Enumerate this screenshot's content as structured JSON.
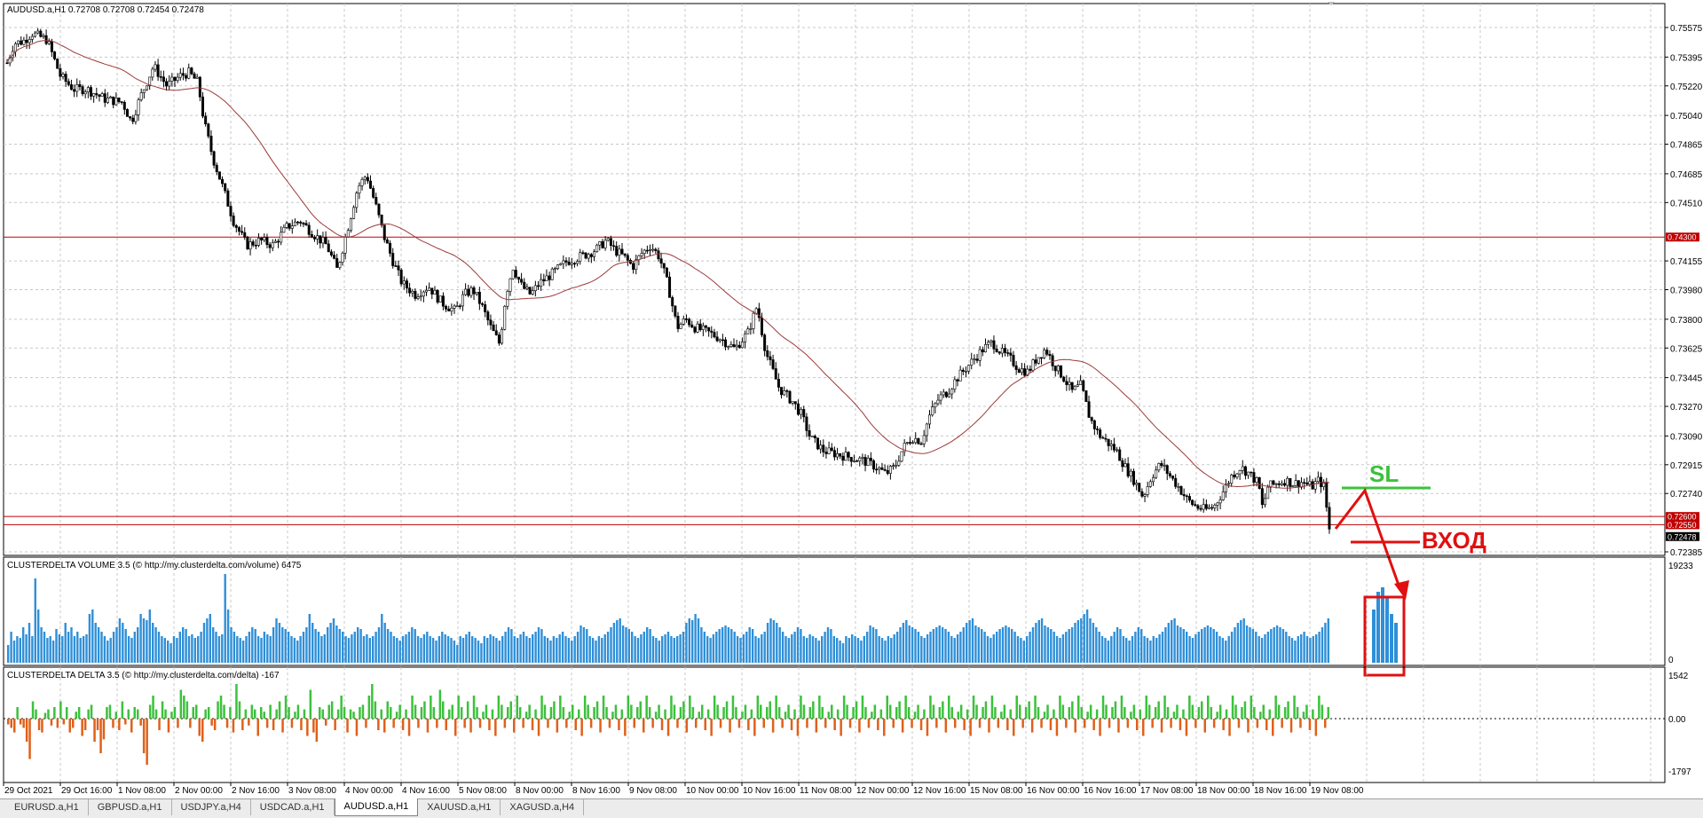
{
  "main_chart": {
    "title": "AUDUSD.a,H1  0.72708 0.72708 0.72454 0.72478",
    "price_ticks": [
      "0.75575",
      "0.75395",
      "0.75220",
      "0.75040",
      "0.74865",
      "0.74685",
      "0.74510",
      "0.74155",
      "0.73980",
      "0.73800",
      "0.73625",
      "0.73445",
      "0.73270",
      "0.73090",
      "0.72915",
      "0.72740",
      "0.72385"
    ],
    "level_lines": [
      {
        "label": "0.74300",
        "price": 0.743
      },
      {
        "label": "0.72600",
        "price": 0.726
      },
      {
        "label": "0.72550",
        "price": 0.7255
      }
    ],
    "current_price": {
      "label": "0.72478",
      "price": 0.72478
    },
    "annotation_sl": "SL",
    "annotation_entry": "ВХОД",
    "colors": {
      "bull": "#ffffff",
      "bear": "#000000",
      "ma": "#9c3a3a",
      "level": "#c00000",
      "sl": "#3cc13c",
      "entry": "#e01010"
    }
  },
  "volume_panel": {
    "title": "CLUSTERDELTA VOLUME 3.5 (© http://my.clusterdelta.com/volume) 6475",
    "max_label": "19233",
    "min_label": "0",
    "color": "#2f8fd8"
  },
  "delta_panel": {
    "title": "CLUSTERDELTA DELTA 3.5 (© http://my.clusterdelta.com/delta) -167",
    "max_label": "1542",
    "zero_label": "0.00",
    "min_label": "-1797",
    "pos_color": "#3cc13c",
    "neg_color": "#e0601a"
  },
  "time_axis": [
    "29 Oct 2021",
    "29 Oct 16:00",
    "1 Nov 08:00",
    "2 Nov 00:00",
    "2 Nov 16:00",
    "3 Nov 08:00",
    "4 Nov 00:00",
    "4 Nov 16:00",
    "5 Nov 08:00",
    "8 Nov 00:00",
    "8 Nov 16:00",
    "9 Nov 08:00",
    "10 Nov 00:00",
    "10 Nov 16:00",
    "11 Nov 08:00",
    "12 Nov 00:00",
    "12 Nov 16:00",
    "15 Nov 08:00",
    "16 Nov 00:00",
    "16 Nov 16:00",
    "17 Nov 08:00",
    "18 Nov 00:00",
    "18 Nov 16:00",
    "19 Nov 08:00"
  ],
  "tabs": [
    "EURUSD.a,H1",
    "GBPUSD.a,H1",
    "USDJPY.a,H4",
    "USDCAD.a,H1",
    "AUDUSD.a,H1",
    "XAUUSD.a,H1",
    "XAGUSD.a,H4"
  ],
  "active_tab": "AUDUSD.a,H1",
  "price_path": [
    [
      0,
      0.7536
    ],
    [
      8,
      0.7548
    ],
    [
      18,
      0.7549
    ],
    [
      28,
      0.7554
    ],
    [
      45,
      0.755
    ],
    [
      60,
      0.7528
    ],
    [
      75,
      0.752
    ],
    [
      90,
      0.752
    ],
    [
      110,
      0.7514
    ],
    [
      130,
      0.7512
    ],
    [
      140,
      0.75
    ],
    [
      150,
      0.7515
    ],
    [
      165,
      0.7534
    ],
    [
      180,
      0.7522
    ],
    [
      195,
      0.7528
    ],
    [
      205,
      0.753
    ],
    [
      215,
      0.7524
    ],
    [
      222,
      0.75
    ],
    [
      232,
      0.7478
    ],
    [
      242,
      0.7462
    ],
    [
      255,
      0.744
    ],
    [
      270,
      0.7425
    ],
    [
      285,
      0.7428
    ],
    [
      300,
      0.7425
    ],
    [
      315,
      0.7436
    ],
    [
      330,
      0.744
    ],
    [
      345,
      0.7432
    ],
    [
      360,
      0.7425
    ],
    [
      372,
      0.741
    ],
    [
      385,
      0.7438
    ],
    [
      395,
      0.746
    ],
    [
      405,
      0.7468
    ],
    [
      415,
      0.745
    ],
    [
      425,
      0.743
    ],
    [
      435,
      0.7415
    ],
    [
      445,
      0.7402
    ],
    [
      460,
      0.7395
    ],
    [
      475,
      0.74
    ],
    [
      490,
      0.739
    ],
    [
      505,
      0.7385
    ],
    [
      515,
      0.7395
    ],
    [
      525,
      0.7398
    ],
    [
      535,
      0.7388
    ],
    [
      545,
      0.7375
    ],
    [
      555,
      0.7365
    ],
    [
      562,
      0.7395
    ],
    [
      570,
      0.7412
    ],
    [
      580,
      0.74
    ],
    [
      590,
      0.7395
    ],
    [
      600,
      0.7402
    ],
    [
      615,
      0.7408
    ],
    [
      630,
      0.7415
    ],
    [
      645,
      0.7418
    ],
    [
      655,
      0.742
    ],
    [
      665,
      0.7423
    ],
    [
      675,
      0.7428
    ],
    [
      685,
      0.7422
    ],
    [
      695,
      0.7418
    ],
    [
      705,
      0.7412
    ],
    [
      715,
      0.742
    ],
    [
      725,
      0.7425
    ],
    [
      735,
      0.7418
    ],
    [
      745,
      0.74
    ],
    [
      755,
      0.7375
    ],
    [
      765,
      0.738
    ],
    [
      775,
      0.7375
    ],
    [
      790,
      0.7372
    ],
    [
      805,
      0.7368
    ],
    [
      820,
      0.7362
    ],
    [
      835,
      0.7372
    ],
    [
      845,
      0.7388
    ],
    [
      855,
      0.736
    ],
    [
      870,
      0.7338
    ],
    [
      885,
      0.733
    ],
    [
      895,
      0.7322
    ],
    [
      905,
      0.7308
    ],
    [
      920,
      0.73
    ],
    [
      935,
      0.7298
    ],
    [
      950,
      0.7296
    ],
    [
      965,
      0.7294
    ],
    [
      980,
      0.729
    ],
    [
      990,
      0.7286
    ],
    [
      1000,
      0.729
    ],
    [
      1010,
      0.7302
    ],
    [
      1020,
      0.7308
    ],
    [
      1030,
      0.7306
    ],
    [
      1040,
      0.7322
    ],
    [
      1050,
      0.7332
    ],
    [
      1060,
      0.7336
    ],
    [
      1070,
      0.7344
    ],
    [
      1080,
      0.735
    ],
    [
      1090,
      0.7356
    ],
    [
      1100,
      0.7362
    ],
    [
      1110,
      0.7366
    ],
    [
      1120,
      0.736
    ],
    [
      1130,
      0.7356
    ],
    [
      1140,
      0.735
    ],
    [
      1150,
      0.7348
    ],
    [
      1160,
      0.7356
    ],
    [
      1170,
      0.7362
    ],
    [
      1180,
      0.7352
    ],
    [
      1190,
      0.7345
    ],
    [
      1200,
      0.7336
    ],
    [
      1210,
      0.734
    ],
    [
      1220,
      0.732
    ],
    [
      1230,
      0.731
    ],
    [
      1240,
      0.7305
    ],
    [
      1250,
      0.73
    ],
    [
      1260,
      0.729
    ],
    [
      1270,
      0.7282
    ],
    [
      1280,
      0.7272
    ],
    [
      1290,
      0.7285
    ],
    [
      1300,
      0.7292
    ],
    [
      1310,
      0.7285
    ],
    [
      1320,
      0.7278
    ],
    [
      1330,
      0.727
    ],
    [
      1340,
      0.7266
    ],
    [
      1350,
      0.7264
    ],
    [
      1360,
      0.7266
    ],
    [
      1370,
      0.7275
    ],
    [
      1380,
      0.7285
    ],
    [
      1390,
      0.729
    ],
    [
      1400,
      0.7286
    ],
    [
      1410,
      0.728
    ],
    [
      1415,
      0.7264
    ],
    [
      1420,
      0.7278
    ],
    [
      1430,
      0.728
    ],
    [
      1440,
      0.7282
    ],
    [
      1450,
      0.728
    ],
    [
      1460,
      0.7281
    ],
    [
      1470,
      0.7278
    ],
    [
      1478,
      0.7282
    ],
    [
      1484,
      0.7278
    ],
    [
      1488,
      0.726
    ],
    [
      1491,
      0.7248
    ]
  ],
  "volume_values": [
    20,
    35,
    25,
    30,
    28,
    40,
    32,
    45,
    30,
    95,
    60,
    40,
    35,
    28,
    30,
    25,
    38,
    32,
    30,
    45,
    35,
    40,
    30,
    35,
    28,
    30,
    32,
    55,
    60,
    45,
    40,
    35,
    30,
    25,
    28,
    35,
    40,
    50,
    45,
    38,
    30,
    28,
    35,
    40,
    55,
    50,
    48,
    60,
    45,
    40,
    35,
    30,
    28,
    25,
    22,
    30,
    28,
    35,
    40,
    38,
    30,
    32,
    28,
    30,
    35,
    45,
    50,
    55,
    40,
    35,
    30,
    32,
    100,
    60,
    40,
    35,
    30,
    28,
    25,
    30,
    35,
    40,
    38,
    30,
    28,
    35,
    32,
    30,
    40,
    50,
    45,
    40,
    38,
    35,
    30,
    28,
    25,
    30,
    35,
    40,
    55,
    45,
    38,
    35,
    30,
    32,
    40,
    45,
    50,
    42,
    38,
    35,
    30,
    28,
    32,
    35,
    40,
    38,
    30,
    32,
    28,
    30,
    35,
    40,
    55,
    45,
    38,
    35,
    30,
    28,
    25,
    30,
    32,
    35,
    40,
    38,
    30,
    28,
    32,
    35,
    30,
    28,
    25,
    30,
    35,
    32,
    30,
    28,
    25,
    20,
    30,
    28,
    32,
    35,
    30,
    28,
    25,
    22,
    30,
    28,
    32,
    30,
    28,
    25,
    30,
    35,
    40,
    38,
    30,
    28,
    32,
    35,
    30,
    28,
    32,
    35,
    40,
    38,
    30,
    28,
    25,
    30,
    28,
    32,
    35,
    30,
    28,
    25,
    30,
    35,
    42,
    40,
    38,
    30,
    28,
    25,
    30,
    28,
    32,
    35,
    40,
    45,
    48,
    50,
    42,
    40,
    38,
    35,
    30,
    28,
    32,
    35,
    40,
    38,
    30,
    28,
    25,
    30,
    32,
    35,
    30,
    28,
    30,
    32,
    35,
    45,
    50,
    48,
    55,
    50,
    40,
    35,
    30,
    28,
    32,
    35,
    38,
    40,
    42,
    40,
    38,
    35,
    30,
    28,
    32,
    35,
    40,
    38,
    30,
    28,
    32,
    35,
    45,
    50,
    48,
    45,
    40,
    35,
    30,
    28,
    32,
    35,
    40,
    38,
    30,
    28,
    32,
    30,
    28,
    25,
    30,
    35,
    40,
    38,
    30,
    28,
    25,
    22,
    30,
    28,
    32,
    30,
    28,
    25,
    30,
    35,
    42,
    40,
    38,
    30,
    28,
    25,
    30,
    28,
    32,
    35,
    40,
    45,
    48,
    42,
    40,
    38,
    35,
    30,
    28,
    32,
    35,
    38,
    40,
    42,
    40,
    38,
    35,
    30,
    28,
    32,
    35,
    40,
    45,
    48,
    50,
    42,
    40,
    38,
    35,
    30,
    28,
    32,
    35,
    38,
    40,
    42,
    40,
    38,
    35,
    30,
    28,
    25,
    30,
    35,
    40,
    45,
    48,
    50,
    42,
    40,
    38,
    35,
    30,
    28,
    32,
    35,
    38,
    40,
    45,
    48,
    50,
    55,
    60,
    50,
    45,
    40,
    35,
    30,
    28,
    25,
    30,
    35,
    40,
    38,
    30,
    28,
    25,
    30,
    35,
    40,
    38,
    30,
    28,
    25,
    30,
    28,
    32,
    35,
    40,
    45,
    48,
    50,
    42,
    40,
    38,
    35,
    30,
    28,
    32,
    35,
    38,
    40,
    42,
    40,
    38,
    35,
    30,
    28,
    25,
    30,
    35,
    40,
    45,
    48,
    50,
    42,
    40,
    38,
    35,
    30,
    28,
    32,
    35,
    38,
    40,
    42,
    40,
    38,
    35,
    30,
    28,
    25,
    30,
    32,
    35,
    30,
    28,
    30,
    32,
    35,
    40,
    45,
    50
  ],
  "delta_values": [
    -5,
    -8,
    -12,
    10,
    -5,
    -8,
    -20,
    -35,
    15,
    8,
    -10,
    -12,
    5,
    8,
    -6,
    10,
    -8,
    15,
    -5,
    10,
    -12,
    -8,
    6,
    10,
    -15,
    -10,
    8,
    12,
    -20,
    -10,
    -30,
    -18,
    10,
    12,
    -8,
    6,
    -10,
    15,
    -5,
    8,
    -12,
    10,
    8,
    -6,
    -30,
    -40,
    12,
    20,
    8,
    -10,
    15,
    8,
    -12,
    6,
    10,
    -8,
    25,
    20,
    15,
    -8,
    10,
    12,
    -15,
    -20,
    8,
    10,
    -6,
    -10,
    15,
    20,
    12,
    -8,
    10,
    -12,
    30,
    15,
    -10,
    8,
    -6,
    12,
    8,
    -15,
    10,
    6,
    -8,
    12,
    -10,
    8,
    15,
    -12,
    20,
    10,
    -8,
    6,
    12,
    -10,
    8,
    -15,
    25,
    -12,
    -20,
    10,
    8,
    -6,
    12,
    15,
    -10,
    8,
    20,
    10,
    -12,
    8,
    6,
    -15,
    10,
    12,
    -8,
    20,
    30,
    15,
    -10,
    8,
    -12,
    15,
    10,
    -8,
    6,
    12,
    -10,
    8,
    -15,
    20,
    12,
    -8,
    10,
    15,
    -12,
    20,
    10,
    -8,
    25,
    15,
    -10,
    8,
    12,
    -15,
    20,
    10,
    -8,
    15,
    -12,
    20,
    10,
    -8,
    6,
    12,
    -10,
    8,
    -15,
    20,
    12,
    -8,
    10,
    15,
    -12,
    20,
    10,
    -8,
    6,
    12,
    -10,
    8,
    -15,
    20,
    12,
    -8,
    10,
    15,
    -12,
    20,
    10,
    -8,
    6,
    12,
    -10,
    8,
    -15,
    20,
    12,
    -8,
    10,
    15,
    -12,
    20,
    10,
    -8,
    6,
    12,
    -10,
    8,
    -15,
    20,
    12,
    -8,
    10,
    15,
    -12,
    20,
    10,
    -8,
    6,
    12,
    -10,
    8,
    -15,
    20,
    12,
    -8,
    10,
    15,
    -12,
    20,
    10,
    -8,
    6,
    12,
    -10,
    8,
    -15,
    20,
    12,
    -8,
    10,
    15,
    -12,
    20,
    10,
    -8,
    6,
    12,
    -10,
    8,
    -15,
    20,
    12,
    -8,
    10,
    15,
    -12,
    20,
    10,
    -8,
    6,
    12,
    -10,
    8,
    -15,
    20,
    12,
    -8,
    10,
    15,
    -12,
    20,
    10,
    -8,
    6,
    12,
    -10,
    8,
    -15,
    20,
    12,
    -8,
    10,
    15,
    -12,
    20,
    10,
    -8,
    6,
    12,
    -10,
    8,
    -15,
    20,
    12,
    -8,
    10,
    15,
    -12,
    20,
    10,
    -8,
    6,
    12,
    -10,
    8,
    -15,
    20,
    12,
    -8,
    10,
    15,
    -12,
    20,
    10,
    -8,
    6,
    12,
    -10,
    8,
    -15,
    20,
    12,
    -8,
    10,
    15,
    -12,
    20,
    10,
    -8,
    6,
    12,
    -10,
    8,
    -15,
    20,
    12,
    -8,
    10,
    15,
    -12,
    20,
    10,
    -8,
    6,
    12,
    -10,
    8,
    -15,
    20,
    12,
    -8,
    10,
    15,
    -12,
    20,
    10,
    -8,
    6,
    12,
    -10,
    8,
    -15,
    20,
    12,
    -8,
    10,
    15,
    -12,
    20,
    10,
    -8,
    6,
    12,
    -10,
    8,
    -15,
    20,
    12,
    -8,
    10,
    15,
    -12,
    20,
    10,
    -8,
    6,
    12,
    -10,
    8,
    -15,
    20,
    12,
    -8,
    10,
    15,
    -12,
    20,
    10,
    -8,
    6,
    12,
    -10,
    8,
    -15,
    20,
    12,
    -8,
    10,
    15,
    -12,
    20,
    10,
    -8,
    6,
    12,
    -10,
    8,
    -15,
    20,
    12,
    -8,
    10,
    15,
    -12,
    20,
    10,
    -8,
    6,
    12,
    -10,
    8,
    -15,
    20,
    12,
    -8,
    10
  ],
  "signal_volume_values": [
    60,
    80,
    85,
    75,
    55,
    45
  ]
}
